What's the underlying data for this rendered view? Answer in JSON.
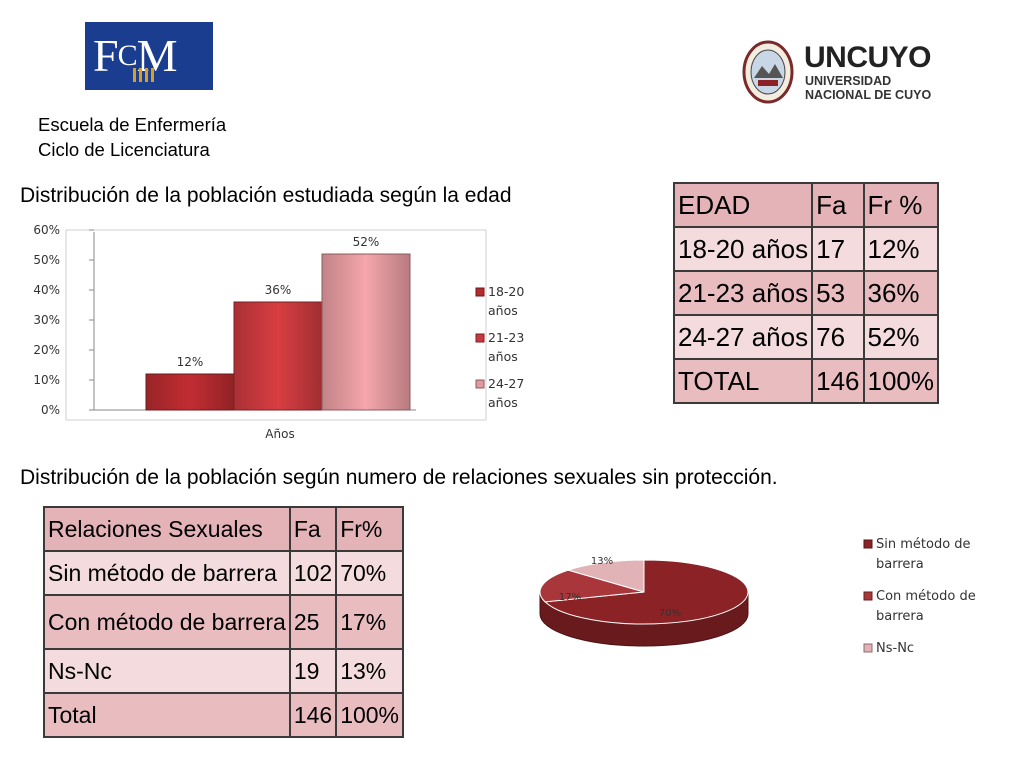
{
  "logos": {
    "fcm": "FCM",
    "uncuyo_name": "UNCUYO",
    "uncuyo_line1": "UNIVERSIDAD",
    "uncuyo_line2": "NACIONAL DE CUYO"
  },
  "header": {
    "line1": "Escuela de Enfermería",
    "line2": "Ciclo de Licenciatura"
  },
  "section1": {
    "title": "Distribución de la población estudiada según la edad"
  },
  "section2": {
    "title": "Distribución de la población según numero de relaciones sexuales sin protección."
  },
  "age_table": {
    "headers": [
      "EDAD",
      "Fa",
      "Fr %"
    ],
    "rows": [
      [
        "18-20 años",
        "17",
        "12%"
      ],
      [
        "21-23 años",
        "53",
        "36%"
      ],
      [
        "24-27 años",
        "76",
        "52%"
      ],
      [
        "TOTAL",
        "146",
        "100%"
      ]
    ]
  },
  "relations_table": {
    "headers": [
      "Relaciones Sexuales",
      "Fa",
      "Fr%"
    ],
    "rows": [
      [
        "Sin método de barrera",
        "102",
        "70%"
      ],
      [
        "Con método de barrera",
        "25",
        "17%"
      ],
      [
        "Ns-Nc",
        "19",
        "13%"
      ],
      [
        "Total",
        "146",
        "100%"
      ]
    ]
  },
  "chart_data": [
    {
      "type": "bar",
      "categories": [
        "Años"
      ],
      "series": [
        {
          "name": "18-20 años",
          "values": [
            12
          ],
          "label": "12%",
          "color": "#b42a2e"
        },
        {
          "name": "21-23 años",
          "values": [
            36
          ],
          "label": "36%",
          "color": "#c8393d"
        },
        {
          "name": "24-27 años",
          "values": [
            52
          ],
          "label": "52%",
          "color": "#e39a9f"
        }
      ],
      "xlabel": "Años",
      "ylabel": "",
      "ylim": [
        0,
        60
      ],
      "yticks": [
        "0%",
        "10%",
        "20%",
        "30%",
        "40%",
        "50%",
        "60%"
      ],
      "grid": false,
      "legend": "right"
    },
    {
      "type": "pie",
      "slices": [
        {
          "name": "Sin método de barrera",
          "value": 70,
          "label": "70%",
          "color": "#8a2226"
        },
        {
          "name": "Con método de barrera",
          "value": 17,
          "label": "17%",
          "color": "#a8363a"
        },
        {
          "name": "Ns-Nc",
          "value": 13,
          "label": "13%",
          "color": "#e2b3b6"
        }
      ],
      "legend": "right"
    }
  ]
}
